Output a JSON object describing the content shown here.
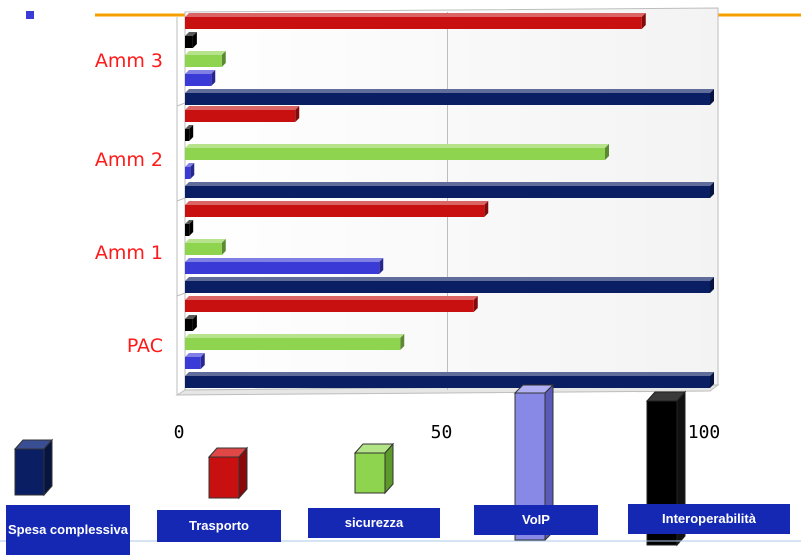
{
  "chart_data": {
    "type": "bar",
    "orientation": "horizontal",
    "categories": [
      "PAC",
      "Amm 1",
      "Amm 2",
      "Amm 3"
    ],
    "series": [
      {
        "name": "Spesa complessiva",
        "color": "#0a1e64",
        "values": [
          100,
          100,
          100,
          100
        ]
      },
      {
        "name": "VoIP",
        "color": "#3a3ad6",
        "values": [
          3,
          37,
          1,
          5
        ]
      },
      {
        "name": "sicurezza",
        "color": "#8ed44e",
        "values": [
          41,
          7,
          80,
          7
        ]
      },
      {
        "name": "Interoperabilità",
        "color": "#000000",
        "values": [
          1.5,
          0.8,
          0.8,
          1.5
        ]
      },
      {
        "name": "Trasporto",
        "color": "#c81010",
        "values": [
          55,
          57,
          21,
          87
        ]
      }
    ],
    "xlim": [
      0,
      100
    ],
    "xticks": [
      "0",
      "50",
      "100"
    ],
    "grid": true,
    "legend_position": "bottom",
    "title": "",
    "xlabel": "",
    "ylabel": ""
  },
  "legend": {
    "items": [
      {
        "key": "spesa",
        "label": "Spesa complessiva",
        "color": "#0a1e64"
      },
      {
        "key": "trasporto",
        "label": "Trasporto",
        "color": "#c81010"
      },
      {
        "key": "sicurezza",
        "label": "sicurezza",
        "color": "#8ed44e"
      },
      {
        "key": "voip",
        "label": "VoIP",
        "color": "#8888e6"
      },
      {
        "key": "interop",
        "label": "Interoperabilità",
        "color": "#000000"
      }
    ]
  },
  "decor": {
    "accent_line_color": "#f5a000",
    "bullet_color": "#3a3ad6",
    "bottom_line_color": "#a8c8e8",
    "legend_box_color": "#1428b4"
  }
}
